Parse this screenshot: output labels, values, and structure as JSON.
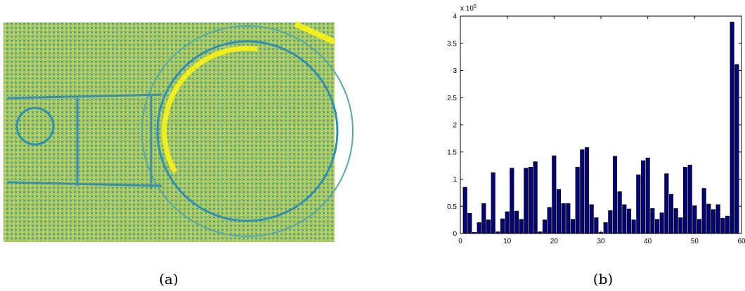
{
  "chart_data": {
    "type": "bar",
    "x": [
      1,
      2,
      3,
      4,
      5,
      6,
      7,
      8,
      9,
      10,
      11,
      12,
      13,
      14,
      15,
      16,
      17,
      18,
      19,
      20,
      21,
      22,
      23,
      24,
      25,
      26,
      27,
      28,
      29,
      30,
      31,
      32,
      33,
      34,
      35,
      36,
      37,
      38,
      39,
      40,
      41,
      42,
      43,
      44,
      45,
      46,
      47,
      48,
      49,
      50,
      51,
      52,
      53,
      54,
      55,
      56,
      57,
      58,
      59
    ],
    "values": [
      0.85,
      0.37,
      0.02,
      0.2,
      0.55,
      0.25,
      1.12,
      0.03,
      0.27,
      0.4,
      1.2,
      0.41,
      0.26,
      1.2,
      1.22,
      1.32,
      0.03,
      0.25,
      0.48,
      1.43,
      0.81,
      0.55,
      0.55,
      0.26,
      1.22,
      1.54,
      1.58,
      0.53,
      0.29,
      0.02,
      0.2,
      0.42,
      1.42,
      0.77,
      0.53,
      0.45,
      0.25,
      1.08,
      1.34,
      1.39,
      0.46,
      0.26,
      0.38,
      1.1,
      0.72,
      0.46,
      0.29,
      1.22,
      1.26,
      0.51,
      0.26,
      0.83,
      0.54,
      0.44,
      0.53,
      0.28,
      0.32,
      3.89,
      3.11
    ],
    "color": "#000080",
    "xlim": [
      0,
      60
    ],
    "xticks": [
      0,
      10,
      20,
      30,
      40,
      50,
      60
    ],
    "ylim": [
      0,
      4
    ],
    "yticks": [
      0,
      0.5,
      1,
      1.5,
      2,
      2.5,
      3,
      3.5,
      4
    ],
    "axis_multiplier": {
      "base": "x 10",
      "exponent": "5"
    }
  },
  "captions": [
    "(a)",
    "(b)"
  ]
}
